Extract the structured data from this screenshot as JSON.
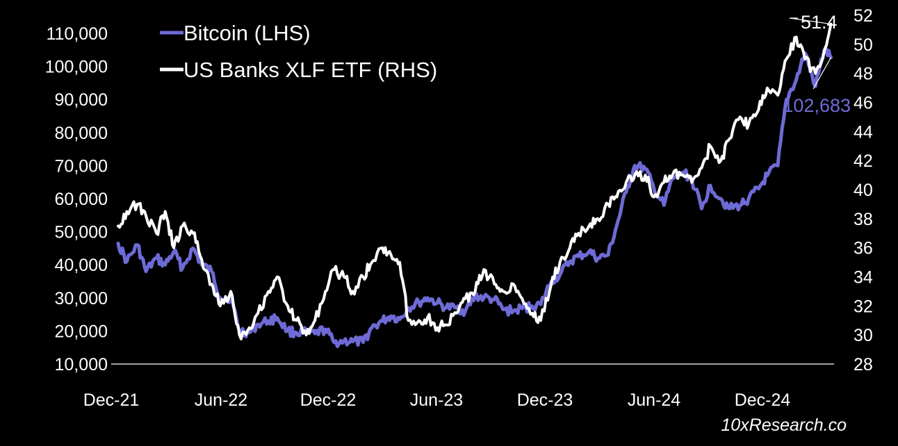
{
  "chart_data": {
    "type": "line",
    "title": "",
    "left_axis": {
      "ticks": [
        10000,
        20000,
        30000,
        40000,
        50000,
        60000,
        70000,
        80000,
        90000,
        100000,
        110000
      ],
      "ylim": [
        10000,
        110000
      ]
    },
    "right_axis": {
      "ticks": [
        28,
        30,
        32,
        34,
        36,
        38,
        40,
        42,
        44,
        46,
        48,
        50,
        52
      ],
      "ylim": [
        28,
        52
      ]
    },
    "x_ticks": [
      {
        "label": "Dec-21",
        "x": "2021-12-01"
      },
      {
        "label": "Jun-22",
        "x": "2022-06-01"
      },
      {
        "label": "Dec-22",
        "x": "2022-12-01"
      },
      {
        "label": "Jun-23",
        "x": "2023-06-01"
      },
      {
        "label": "Dec-23",
        "x": "2023-12-01"
      },
      {
        "label": "Jun-24",
        "x": "2024-06-01"
      },
      {
        "label": "Dec-24",
        "x": "2024-12-01"
      }
    ],
    "xlim": [
      "2021-12-01",
      "2025-01-31"
    ],
    "legend": {
      "placement": "top-left"
    },
    "grid": false,
    "series": [
      {
        "name": "Bitcoin (LHS)",
        "axis": "left",
        "color": "#6E6BD6",
        "end_label": "102,683",
        "points": [
          [
            "2021-12-01",
            46500
          ],
          [
            "2021-12-15",
            41000
          ],
          [
            "2022-01-01",
            46000
          ],
          [
            "2022-01-15",
            38000
          ],
          [
            "2022-02-01",
            42000
          ],
          [
            "2022-02-15",
            40000
          ],
          [
            "2022-03-01",
            44000
          ],
          [
            "2022-03-15",
            39000
          ],
          [
            "2022-04-01",
            45000
          ],
          [
            "2022-04-15",
            40000
          ],
          [
            "2022-05-01",
            38000
          ],
          [
            "2022-05-15",
            30000
          ],
          [
            "2022-06-01",
            30000
          ],
          [
            "2022-06-15",
            20000
          ],
          [
            "2022-07-01",
            19500
          ],
          [
            "2022-07-15",
            22000
          ],
          [
            "2022-08-01",
            23000
          ],
          [
            "2022-08-15",
            24000
          ],
          [
            "2022-09-01",
            20000
          ],
          [
            "2022-09-15",
            19500
          ],
          [
            "2022-10-01",
            19500
          ],
          [
            "2022-10-15",
            19200
          ],
          [
            "2022-11-01",
            20500
          ],
          [
            "2022-11-15",
            16500
          ],
          [
            "2022-12-01",
            17000
          ],
          [
            "2022-12-15",
            16800
          ],
          [
            "2023-01-01",
            16600
          ],
          [
            "2023-01-15",
            21000
          ],
          [
            "2023-02-01",
            23000
          ],
          [
            "2023-02-15",
            24500
          ],
          [
            "2023-03-01",
            23500
          ],
          [
            "2023-03-15",
            27000
          ],
          [
            "2023-04-01",
            28500
          ],
          [
            "2023-04-15",
            30000
          ],
          [
            "2023-05-01",
            28500
          ],
          [
            "2023-05-15",
            27000
          ],
          [
            "2023-06-01",
            27000
          ],
          [
            "2023-06-15",
            26000
          ],
          [
            "2023-07-01",
            30500
          ],
          [
            "2023-07-15",
            30000
          ],
          [
            "2023-08-01",
            29500
          ],
          [
            "2023-08-15",
            26500
          ],
          [
            "2023-09-01",
            26000
          ],
          [
            "2023-09-15",
            26800
          ],
          [
            "2023-10-01",
            27500
          ],
          [
            "2023-10-15",
            28000
          ],
          [
            "2023-11-01",
            35000
          ],
          [
            "2023-11-15",
            37000
          ],
          [
            "2023-12-01",
            41000
          ],
          [
            "2023-12-15",
            42500
          ],
          [
            "2024-01-01",
            44000
          ],
          [
            "2024-01-15",
            42000
          ],
          [
            "2024-02-01",
            43000
          ],
          [
            "2024-02-15",
            52000
          ],
          [
            "2024-03-01",
            62000
          ],
          [
            "2024-03-15",
            70000
          ],
          [
            "2024-04-01",
            69000
          ],
          [
            "2024-04-15",
            63000
          ],
          [
            "2024-05-01",
            58000
          ],
          [
            "2024-05-15",
            66000
          ],
          [
            "2024-06-01",
            68000
          ],
          [
            "2024-06-15",
            66000
          ],
          [
            "2024-07-01",
            57000
          ],
          [
            "2024-07-15",
            64000
          ],
          [
            "2024-08-01",
            60000
          ],
          [
            "2024-08-15",
            57000
          ],
          [
            "2024-09-01",
            58000
          ],
          [
            "2024-09-15",
            60000
          ],
          [
            "2024-10-01",
            63000
          ],
          [
            "2024-10-15",
            67000
          ],
          [
            "2024-11-01",
            70000
          ],
          [
            "2024-11-15",
            90000
          ],
          [
            "2024-12-01",
            96000
          ],
          [
            "2024-12-15",
            104000
          ],
          [
            "2025-01-01",
            94000
          ],
          [
            "2025-01-15",
            105000
          ],
          [
            "2025-01-26",
            102683
          ]
        ]
      },
      {
        "name": "US Banks XLF ETF (RHS)",
        "axis": "right",
        "color": "#FFFFFF",
        "end_label": "51.4",
        "points": [
          [
            "2021-12-01",
            37.5
          ],
          [
            "2021-12-15",
            38.5
          ],
          [
            "2022-01-01",
            39.0
          ],
          [
            "2022-01-15",
            38.2
          ],
          [
            "2022-02-01",
            37.0
          ],
          [
            "2022-02-15",
            38.5
          ],
          [
            "2022-03-01",
            36.0
          ],
          [
            "2022-03-15",
            37.5
          ],
          [
            "2022-04-01",
            37.0
          ],
          [
            "2022-04-15",
            35.2
          ],
          [
            "2022-05-01",
            33.5
          ],
          [
            "2022-05-15",
            32.0
          ],
          [
            "2022-06-01",
            33.0
          ],
          [
            "2022-06-15",
            30.0
          ],
          [
            "2022-07-01",
            30.5
          ],
          [
            "2022-07-15",
            31.5
          ],
          [
            "2022-08-01",
            33.0
          ],
          [
            "2022-08-15",
            34.0
          ],
          [
            "2022-09-01",
            32.0
          ],
          [
            "2022-09-15",
            31.0
          ],
          [
            "2022-10-01",
            30.0
          ],
          [
            "2022-10-15",
            31.0
          ],
          [
            "2022-11-01",
            33.0
          ],
          [
            "2022-11-15",
            34.5
          ],
          [
            "2022-12-01",
            34.0
          ],
          [
            "2022-12-15",
            33.0
          ],
          [
            "2023-01-01",
            34.0
          ],
          [
            "2023-01-15",
            35.0
          ],
          [
            "2023-02-01",
            36.0
          ],
          [
            "2023-02-15",
            35.5
          ],
          [
            "2023-03-01",
            35.0
          ],
          [
            "2023-03-15",
            31.0
          ],
          [
            "2023-04-01",
            31.0
          ],
          [
            "2023-04-15",
            31.2
          ],
          [
            "2023-05-01",
            30.5
          ],
          [
            "2023-05-15",
            30.7
          ],
          [
            "2023-06-01",
            31.5
          ],
          [
            "2023-06-15",
            32.5
          ],
          [
            "2023-07-01",
            33.0
          ],
          [
            "2023-07-15",
            34.5
          ],
          [
            "2023-08-01",
            33.5
          ],
          [
            "2023-08-15",
            33.0
          ],
          [
            "2023-09-01",
            33.5
          ],
          [
            "2023-09-15",
            32.5
          ],
          [
            "2023-10-01",
            31.5
          ],
          [
            "2023-10-15",
            31.0
          ],
          [
            "2023-11-01",
            33.5
          ],
          [
            "2023-11-15",
            35.0
          ],
          [
            "2023-12-01",
            36.0
          ],
          [
            "2023-12-15",
            37.0
          ],
          [
            "2024-01-01",
            37.5
          ],
          [
            "2024-01-15",
            38.0
          ],
          [
            "2024-02-01",
            39.0
          ],
          [
            "2024-02-15",
            39.5
          ],
          [
            "2024-03-01",
            40.5
          ],
          [
            "2024-03-15",
            41.0
          ],
          [
            "2024-04-01",
            41.0
          ],
          [
            "2024-04-15",
            39.5
          ],
          [
            "2024-05-01",
            40.5
          ],
          [
            "2024-05-15",
            41.0
          ],
          [
            "2024-06-01",
            41.0
          ],
          [
            "2024-06-15",
            40.5
          ],
          [
            "2024-07-01",
            41.5
          ],
          [
            "2024-07-15",
            43.0
          ],
          [
            "2024-08-01",
            42.0
          ],
          [
            "2024-08-15",
            43.5
          ],
          [
            "2024-09-01",
            45.0
          ],
          [
            "2024-09-15",
            44.5
          ],
          [
            "2024-10-01",
            45.5
          ],
          [
            "2024-10-15",
            47.0
          ],
          [
            "2024-11-01",
            46.5
          ],
          [
            "2024-11-15",
            49.0
          ],
          [
            "2024-12-01",
            50.5
          ],
          [
            "2024-12-15",
            49.0
          ],
          [
            "2025-01-01",
            48.0
          ],
          [
            "2025-01-15",
            49.5
          ],
          [
            "2025-01-26",
            51.4
          ]
        ]
      }
    ]
  },
  "watermark": "10xResearch.co"
}
